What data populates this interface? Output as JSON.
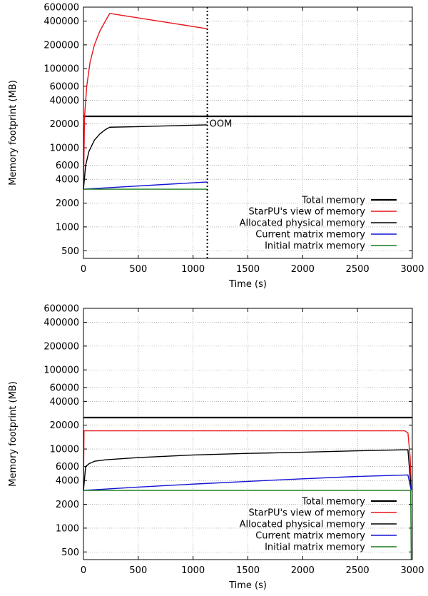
{
  "chart_data": [
    {
      "type": "line",
      "xlabel": "Time (s)",
      "ylabel": "Memory footprint (MB)",
      "xlim": [
        0,
        3000
      ],
      "ylim": [
        400,
        600000
      ],
      "y_scale": "log",
      "grid": true,
      "legend_position": "bottom-right",
      "x_ticks": [
        "0",
        "500",
        "1000",
        "1500",
        "2000",
        "2500",
        "3000"
      ],
      "y_ticks": [
        "600000",
        "400000",
        "200000",
        "100000",
        "60000",
        "40000",
        "20000",
        "10000",
        "6000",
        "4000",
        "2000",
        "1000",
        "500"
      ],
      "annotation": {
        "text": "OOM",
        "x": 1130,
        "y": 20000
      },
      "series": [
        {
          "name": "Total memory",
          "color": "#000000",
          "x": [
            0,
            3000
          ],
          "y": [
            25000,
            25000
          ]
        },
        {
          "name": "StarPU's view of memory",
          "color": "#e8141a",
          "x": [
            0,
            10,
            30,
            60,
            100,
            150,
            200,
            240,
            1130
          ],
          "y": [
            3000,
            25000,
            60000,
            120000,
            200000,
            300000,
            400000,
            500000,
            320000
          ]
        },
        {
          "name": "Allocated physical memory",
          "color": "#000000",
          "x": [
            0,
            20,
            50,
            100,
            150,
            200,
            240,
            500,
            800,
            1130
          ],
          "y": [
            3000,
            6000,
            9000,
            12500,
            15000,
            17000,
            18200,
            18500,
            19000,
            19500
          ]
        },
        {
          "name": "Current matrix memory",
          "color": "#1414d4",
          "x": [
            0,
            1130
          ],
          "y": [
            3000,
            3700
          ]
        },
        {
          "name": "Initial matrix memory",
          "color": "#1a7a1a",
          "x": [
            0,
            1130
          ],
          "y": [
            3000,
            3000
          ]
        }
      ]
    },
    {
      "type": "line",
      "xlabel": "Time (s)",
      "ylabel": "Memory footprint (MB)",
      "xlim": [
        0,
        3000
      ],
      "ylim": [
        400,
        600000
      ],
      "y_scale": "log",
      "grid": true,
      "legend_position": "bottom-right",
      "x_ticks": [
        "0",
        "500",
        "1000",
        "1500",
        "2000",
        "2500",
        "3000"
      ],
      "y_ticks": [
        "600000",
        "400000",
        "200000",
        "100000",
        "60000",
        "40000",
        "20000",
        "10000",
        "6000",
        "4000",
        "2000",
        "1000",
        "500"
      ],
      "series": [
        {
          "name": "Total memory",
          "color": "#000000",
          "x": [
            0,
            3000
          ],
          "y": [
            25000,
            25000
          ]
        },
        {
          "name": "StarPU's view of memory",
          "color": "#e8141a",
          "x": [
            0,
            5,
            30,
            2930,
            2960,
            2980,
            2990
          ],
          "y": [
            3000,
            17000,
            17000,
            17000,
            16000,
            8000,
            3000
          ]
        },
        {
          "name": "Allocated physical memory",
          "color": "#000000",
          "x": [
            0,
            20,
            50,
            100,
            200,
            500,
            1000,
            1500,
            2000,
            2500,
            2800,
            2960,
            2990
          ],
          "y": [
            3000,
            6000,
            6500,
            7000,
            7300,
            7800,
            8400,
            8800,
            9100,
            9500,
            9700,
            9800,
            3000
          ]
        },
        {
          "name": "Current matrix memory",
          "color": "#1414d4",
          "x": [
            0,
            500,
            1000,
            1500,
            2000,
            2500,
            2960,
            2990
          ],
          "y": [
            3000,
            3300,
            3600,
            3900,
            4200,
            4500,
            4700,
            3000
          ]
        },
        {
          "name": "Initial matrix memory",
          "color": "#1a7a1a",
          "x": [
            0,
            2985,
            2990
          ],
          "y": [
            3000,
            3000,
            400
          ]
        }
      ]
    }
  ]
}
